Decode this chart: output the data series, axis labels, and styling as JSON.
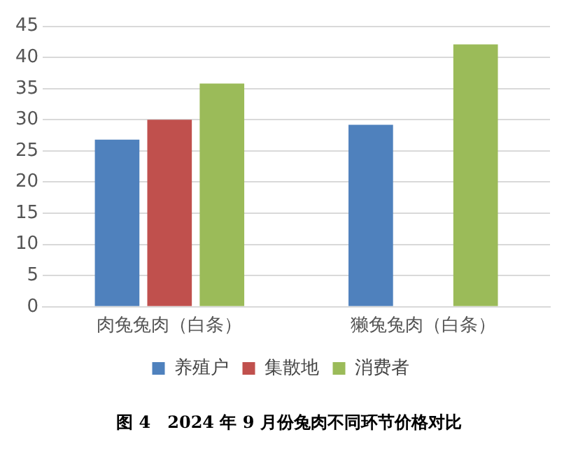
{
  "chart_data": {
    "type": "bar",
    "title": "图 4　2024 年 9 月份兔肉不同环节价格对比",
    "categories": [
      "肉兔兔肉（白条）",
      "獭兔兔肉（白条）"
    ],
    "series": [
      {
        "name": "养殖户",
        "color": "#4f81bd",
        "values": [
          26.8,
          29.2
        ]
      },
      {
        "name": "集散地",
        "color": "#c0504d",
        "values": [
          30,
          null
        ]
      },
      {
        "name": "消费者",
        "color": "#9bbb59",
        "values": [
          35.8,
          42.1
        ]
      }
    ],
    "ylim": [
      0,
      45
    ],
    "yticks": [
      0,
      5,
      10,
      15,
      20,
      25,
      30,
      35,
      40,
      45
    ],
    "grid": "y",
    "legend": "bottom"
  }
}
